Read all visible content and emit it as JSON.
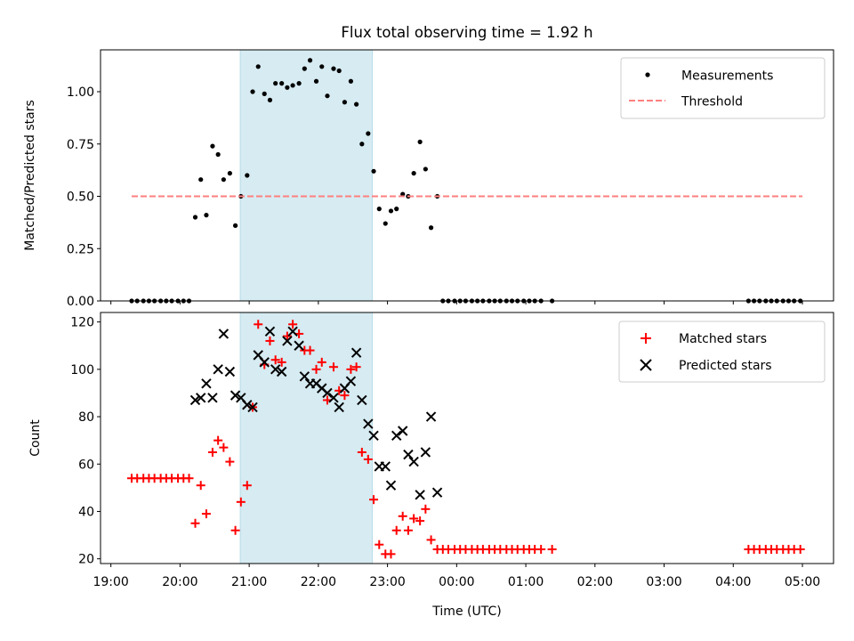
{
  "chart_data": [
    {
      "type": "scatter",
      "title": "Flux total observing time = 1.92 h",
      "ylabel": "Matched/Predicted stars",
      "xlabel": "",
      "xlim": [
        18.85,
        29.45
      ],
      "ylim": [
        0,
        1.2
      ],
      "yticks": [
        "0.00",
        "0.25",
        "0.50",
        "0.75",
        "1.00"
      ],
      "ytick_values": [
        0,
        0.25,
        0.5,
        0.75,
        1.0
      ],
      "highlight_span": [
        20.87,
        22.78
      ],
      "legend_position": "upper right",
      "series": [
        {
          "name": "Measurements",
          "marker": "dot",
          "color": "#000000",
          "points": [
            [
              19.3,
              0
            ],
            [
              19.38,
              0
            ],
            [
              19.47,
              0
            ],
            [
              19.55,
              0
            ],
            [
              19.63,
              0
            ],
            [
              19.72,
              0
            ],
            [
              19.8,
              0
            ],
            [
              19.88,
              0
            ],
            [
              19.97,
              0
            ],
            [
              20.05,
              0
            ],
            [
              20.13,
              0
            ],
            [
              20.22,
              0.4
            ],
            [
              20.3,
              0.58
            ],
            [
              20.38,
              0.41
            ],
            [
              20.47,
              0.74
            ],
            [
              20.55,
              0.7
            ],
            [
              20.63,
              0.58
            ],
            [
              20.72,
              0.61
            ],
            [
              20.8,
              0.36
            ],
            [
              20.88,
              0.5
            ],
            [
              20.97,
              0.6
            ],
            [
              21.05,
              1.0
            ],
            [
              21.13,
              1.12
            ],
            [
              21.22,
              0.99
            ],
            [
              21.3,
              0.96
            ],
            [
              21.38,
              1.04
            ],
            [
              21.47,
              1.04
            ],
            [
              21.55,
              1.02
            ],
            [
              21.63,
              1.03
            ],
            [
              21.72,
              1.04
            ],
            [
              21.8,
              1.11
            ],
            [
              21.88,
              1.15
            ],
            [
              21.97,
              1.05
            ],
            [
              22.05,
              1.12
            ],
            [
              22.13,
              0.98
            ],
            [
              22.22,
              1.11
            ],
            [
              22.3,
              1.1
            ],
            [
              22.38,
              0.95
            ],
            [
              22.47,
              1.05
            ],
            [
              22.55,
              0.94
            ],
            [
              22.63,
              0.75
            ],
            [
              22.72,
              0.8
            ],
            [
              22.8,
              0.62
            ],
            [
              22.88,
              0.44
            ],
            [
              22.97,
              0.37
            ],
            [
              23.05,
              0.43
            ],
            [
              23.13,
              0.44
            ],
            [
              23.22,
              0.51
            ],
            [
              23.3,
              0.5
            ],
            [
              23.38,
              0.61
            ],
            [
              23.47,
              0.76
            ],
            [
              23.55,
              0.63
            ],
            [
              23.63,
              0.35
            ],
            [
              23.72,
              0.5
            ],
            [
              23.8,
              0
            ],
            [
              23.88,
              0
            ],
            [
              23.97,
              0
            ],
            [
              24.05,
              0
            ],
            [
              24.13,
              0
            ],
            [
              24.22,
              0
            ],
            [
              24.3,
              0
            ],
            [
              24.38,
              0
            ],
            [
              24.47,
              0
            ],
            [
              24.55,
              0
            ],
            [
              24.63,
              0
            ],
            [
              24.72,
              0
            ],
            [
              24.8,
              0
            ],
            [
              24.88,
              0
            ],
            [
              24.97,
              0
            ],
            [
              25.05,
              0
            ],
            [
              25.13,
              0
            ],
            [
              25.22,
              0
            ],
            [
              25.38,
              0
            ],
            [
              28.22,
              0
            ],
            [
              28.3,
              0
            ],
            [
              28.38,
              0
            ],
            [
              28.47,
              0
            ],
            [
              28.55,
              0
            ],
            [
              28.63,
              0
            ],
            [
              28.72,
              0
            ],
            [
              28.8,
              0
            ],
            [
              28.88,
              0
            ],
            [
              28.97,
              0
            ]
          ]
        },
        {
          "name": "Threshold",
          "line": "dashed",
          "color": "#ff7f7f",
          "points": [
            [
              19.3,
              0.5
            ],
            [
              29.0,
              0.5
            ]
          ]
        }
      ]
    },
    {
      "type": "scatter",
      "title": "",
      "ylabel": "Count",
      "xlabel": "Time (UTC)",
      "xlim": [
        18.85,
        29.45
      ],
      "ylim": [
        18,
        124
      ],
      "yticks": [
        "20",
        "40",
        "60",
        "80",
        "100",
        "120"
      ],
      "ytick_values": [
        20,
        40,
        60,
        80,
        100,
        120
      ],
      "xticks": [
        "19:00",
        "20:00",
        "21:00",
        "22:00",
        "23:00",
        "00:00",
        "01:00",
        "02:00",
        "03:00",
        "04:00",
        "05:00"
      ],
      "xtick_values": [
        19,
        20,
        21,
        22,
        23,
        24,
        25,
        26,
        27,
        28,
        29
      ],
      "highlight_span": [
        20.87,
        22.78
      ],
      "legend_position": "upper right",
      "series": [
        {
          "name": "Matched stars",
          "marker": "plus",
          "color": "#ff0000",
          "points": [
            [
              19.3,
              54
            ],
            [
              19.38,
              54
            ],
            [
              19.47,
              54
            ],
            [
              19.55,
              54
            ],
            [
              19.63,
              54
            ],
            [
              19.72,
              54
            ],
            [
              19.8,
              54
            ],
            [
              19.88,
              54
            ],
            [
              19.97,
              54
            ],
            [
              20.05,
              54
            ],
            [
              20.13,
              54
            ],
            [
              20.22,
              35
            ],
            [
              20.3,
              51
            ],
            [
              20.38,
              39
            ],
            [
              20.47,
              65
            ],
            [
              20.55,
              70
            ],
            [
              20.63,
              67
            ],
            [
              20.72,
              61
            ],
            [
              20.8,
              32
            ],
            [
              20.88,
              44
            ],
            [
              20.97,
              51
            ],
            [
              21.05,
              84
            ],
            [
              21.13,
              119
            ],
            [
              21.22,
              102
            ],
            [
              21.3,
              112
            ],
            [
              21.38,
              104
            ],
            [
              21.47,
              103
            ],
            [
              21.55,
              114
            ],
            [
              21.63,
              119
            ],
            [
              21.72,
              115
            ],
            [
              21.8,
              108
            ],
            [
              21.88,
              108
            ],
            [
              21.97,
              100
            ],
            [
              22.05,
              103
            ],
            [
              22.13,
              87
            ],
            [
              22.22,
              101
            ],
            [
              22.3,
              91
            ],
            [
              22.38,
              89
            ],
            [
              22.47,
              100
            ],
            [
              22.55,
              101
            ],
            [
              22.63,
              65
            ],
            [
              22.72,
              62
            ],
            [
              22.8,
              45
            ],
            [
              22.88,
              26
            ],
            [
              22.97,
              22
            ],
            [
              23.05,
              22
            ],
            [
              23.13,
              32
            ],
            [
              23.22,
              38
            ],
            [
              23.3,
              32
            ],
            [
              23.38,
              37
            ],
            [
              23.47,
              36
            ],
            [
              23.55,
              41
            ],
            [
              23.63,
              28
            ],
            [
              23.72,
              24
            ],
            [
              23.8,
              24
            ],
            [
              23.88,
              24
            ],
            [
              23.97,
              24
            ],
            [
              24.05,
              24
            ],
            [
              24.13,
              24
            ],
            [
              24.22,
              24
            ],
            [
              24.3,
              24
            ],
            [
              24.38,
              24
            ],
            [
              24.47,
              24
            ],
            [
              24.55,
              24
            ],
            [
              24.63,
              24
            ],
            [
              24.72,
              24
            ],
            [
              24.8,
              24
            ],
            [
              24.88,
              24
            ],
            [
              24.97,
              24
            ],
            [
              25.05,
              24
            ],
            [
              25.13,
              24
            ],
            [
              25.22,
              24
            ],
            [
              25.38,
              24
            ],
            [
              28.22,
              24
            ],
            [
              28.3,
              24
            ],
            [
              28.38,
              24
            ],
            [
              28.47,
              24
            ],
            [
              28.55,
              24
            ],
            [
              28.63,
              24
            ],
            [
              28.72,
              24
            ],
            [
              28.8,
              24
            ],
            [
              28.88,
              24
            ],
            [
              28.97,
              24
            ]
          ]
        },
        {
          "name": "Predicted stars",
          "marker": "x",
          "color": "#000000",
          "points": [
            [
              20.22,
              87
            ],
            [
              20.3,
              88
            ],
            [
              20.38,
              94
            ],
            [
              20.47,
              88
            ],
            [
              20.55,
              100
            ],
            [
              20.63,
              115
            ],
            [
              20.72,
              99
            ],
            [
              20.8,
              89
            ],
            [
              20.88,
              88
            ],
            [
              20.97,
              85
            ],
            [
              21.05,
              84
            ],
            [
              21.13,
              106
            ],
            [
              21.22,
              103
            ],
            [
              21.3,
              116
            ],
            [
              21.38,
              100
            ],
            [
              21.47,
              99
            ],
            [
              21.55,
              112
            ],
            [
              21.63,
              116
            ],
            [
              21.72,
              110
            ],
            [
              21.8,
              97
            ],
            [
              21.88,
              94
            ],
            [
              21.97,
              94
            ],
            [
              22.05,
              92
            ],
            [
              22.13,
              90
            ],
            [
              22.22,
              88
            ],
            [
              22.3,
              84
            ],
            [
              22.38,
              92
            ],
            [
              22.47,
              95
            ],
            [
              22.55,
              107
            ],
            [
              22.63,
              87
            ],
            [
              22.72,
              77
            ],
            [
              22.8,
              72
            ],
            [
              22.88,
              59
            ],
            [
              22.97,
              59
            ],
            [
              23.05,
              51
            ],
            [
              23.13,
              72
            ],
            [
              23.22,
              74
            ],
            [
              23.3,
              64
            ],
            [
              23.38,
              61
            ],
            [
              23.47,
              47
            ],
            [
              23.55,
              65
            ],
            [
              23.63,
              80
            ],
            [
              23.72,
              48
            ]
          ]
        }
      ]
    }
  ]
}
